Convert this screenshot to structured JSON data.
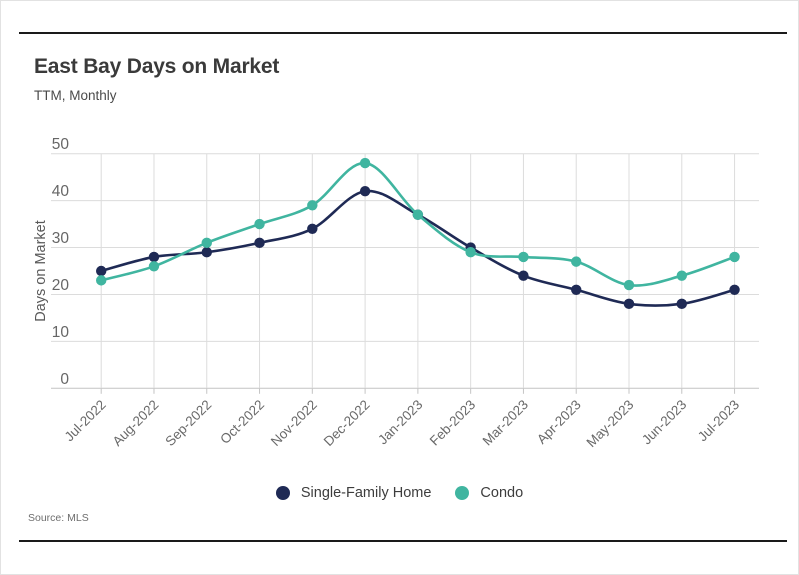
{
  "header": {
    "title": "East Bay Days on Market",
    "subtitle": "TTM, Monthly"
  },
  "footer": {
    "source": "Source: MLS"
  },
  "colors": {
    "single_family": "#1f2a55",
    "condo": "#40b5a0",
    "gridline": "#dcdcdc",
    "axis_line": "#c4c4c4",
    "axis_text": "#696969",
    "rule": "#1a1a1a"
  },
  "chart_data": {
    "type": "line",
    "title": "East Bay Days on Market",
    "subtitle": "TTM, Monthly",
    "xlabel": "",
    "ylabel": "Days on Market",
    "ylim": [
      0,
      50
    ],
    "yticks": [
      0,
      10,
      20,
      30,
      40,
      50
    ],
    "grid": true,
    "legend_position": "bottom",
    "categories": [
      "Jul-2022",
      "Aug-2022",
      "Sep-2022",
      "Oct-2022",
      "Nov-2022",
      "Dec-2022",
      "Jan-2023",
      "Feb-2023",
      "Mar-2023",
      "Apr-2023",
      "May-2023",
      "Jun-2023",
      "Jul-2023"
    ],
    "series": [
      {
        "name": "Single-Family Home",
        "color": "#1f2a55",
        "values": [
          25,
          28,
          29,
          31,
          34,
          42,
          37,
          30,
          24,
          21,
          18,
          18,
          21
        ]
      },
      {
        "name": "Condo",
        "color": "#40b5a0",
        "values": [
          23,
          26,
          31,
          35,
          39,
          48,
          37,
          29,
          28,
          27,
          22,
          24,
          28
        ]
      }
    ]
  }
}
